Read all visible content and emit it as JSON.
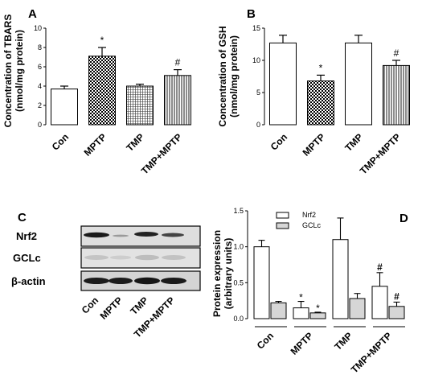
{
  "chart_data": [
    {
      "panel": "A",
      "type": "bar",
      "categories": [
        "Con",
        "MPTP",
        "TMP",
        "TMP+MPTP"
      ],
      "values": [
        3.7,
        7.1,
        4.0,
        5.1
      ],
      "errors": [
        0.3,
        0.9,
        0.2,
        0.6
      ],
      "patterns": [
        "none",
        "checker",
        "grid",
        "vlines"
      ],
      "annotations": [
        "",
        "*",
        "",
        "#"
      ],
      "ylabel_lines": [
        "Concentration of TBARS",
        "(nmol/mg protein)"
      ],
      "ylim": [
        0,
        10
      ],
      "yticks": [
        0,
        2,
        4,
        6,
        8,
        10
      ]
    },
    {
      "panel": "B",
      "type": "bar",
      "categories": [
        "Con",
        "MPTP",
        "TMP",
        "TMP+MPTP"
      ],
      "values": [
        12.7,
        6.8,
        12.7,
        9.2
      ],
      "errors": [
        1.2,
        0.9,
        1.2,
        0.8
      ],
      "patterns": [
        "none",
        "checker",
        "none",
        "vlines"
      ],
      "annotations": [
        "",
        "*",
        "",
        "#"
      ],
      "ylabel_lines": [
        "Concentration of GSH",
        "(nmol/mg protein)"
      ],
      "ylim": [
        0,
        15
      ],
      "yticks": [
        0,
        5,
        10,
        15
      ]
    },
    {
      "panel": "D",
      "type": "bar",
      "categories": [
        "Con",
        "MPTP",
        "TMP",
        "TMP+MPTP"
      ],
      "series": [
        {
          "name": "Nrf2",
          "values": [
            1.0,
            0.15,
            1.1,
            0.45
          ],
          "errors": [
            0.09,
            0.09,
            0.3,
            0.19
          ],
          "fill": "#ffffff"
        },
        {
          "name": "GCLc",
          "values": [
            0.22,
            0.08,
            0.28,
            0.17
          ],
          "errors": [
            0.02,
            0.01,
            0.07,
            0.06
          ],
          "fill": "#d6d6d6"
        }
      ],
      "annotations": {
        "Nrf2": [
          "",
          "*",
          "",
          "#"
        ],
        "GCLc": [
          "",
          "*",
          "",
          "#"
        ]
      },
      "ylabel_lines": [
        "Protein expression",
        "(arbitrary units)"
      ],
      "ylim": [
        0,
        1.5
      ],
      "yticks": [
        "0.0",
        "0.5",
        "1.0",
        "1.5"
      ],
      "legend": "top-left"
    }
  ],
  "panel_letters": {
    "a": "A",
    "b": "B",
    "c": "C",
    "d": "D"
  },
  "blot": {
    "rows": [
      "Nrf2",
      "GCLc",
      "β-actin"
    ],
    "lanes": [
      "Con",
      "MPTP",
      "TMP",
      "TMP+MPTP"
    ]
  }
}
